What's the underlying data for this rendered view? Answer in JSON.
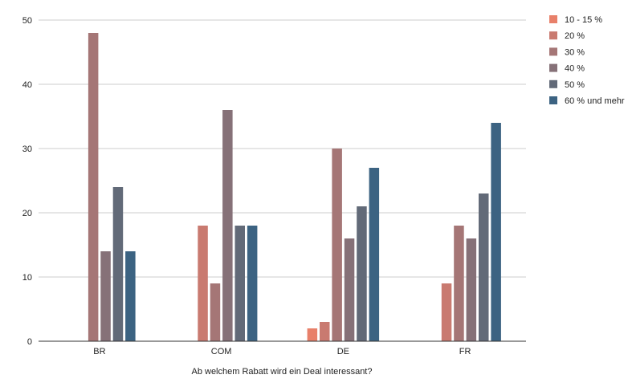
{
  "chart_data": {
    "type": "bar",
    "categories": [
      "BR",
      "COM",
      "DE",
      "FR"
    ],
    "xlabel": "Ab welchem Rabatt wird ein Deal interessant?",
    "ylim": [
      0,
      50
    ],
    "yticks": [
      0,
      10,
      20,
      30,
      40,
      50
    ],
    "grid": true,
    "legend_position": "right",
    "series": [
      {
        "name": "10 - 15 %",
        "color": "#e8806a",
        "values": [
          0,
          0,
          2,
          0
        ]
      },
      {
        "name": "20 %",
        "color": "#c97a70",
        "values": [
          0,
          18,
          3,
          9
        ]
      },
      {
        "name": "30 %",
        "color": "#a57676",
        "values": [
          48,
          9,
          30,
          18
        ]
      },
      {
        "name": "40 %",
        "color": "#867178",
        "values": [
          14,
          36,
          16,
          16
        ]
      },
      {
        "name": "50 %",
        "color": "#626a78",
        "values": [
          24,
          18,
          21,
          23
        ]
      },
      {
        "name": "60 % und mehr",
        "color": "#3c6382",
        "values": [
          14,
          18,
          27,
          34
        ]
      }
    ]
  }
}
